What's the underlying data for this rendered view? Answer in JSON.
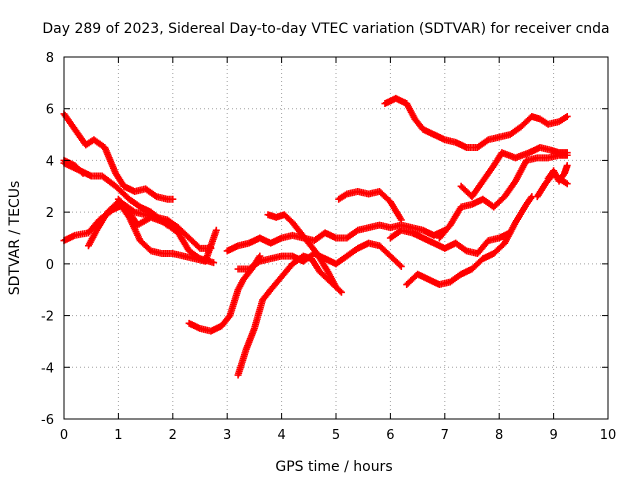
{
  "chart_data": {
    "type": "scatter",
    "title": "Day 289 of 2023, Sidereal Day-to-day VTEC variation (SDTVAR) for receiver cnda",
    "xlabel": "GPS time / hours",
    "ylabel": "SDTVAR / TECUs",
    "xlim": [
      0,
      10
    ],
    "ylim": [
      -6,
      8
    ],
    "xticks": [
      0,
      1,
      2,
      3,
      4,
      5,
      6,
      7,
      8,
      9,
      10
    ],
    "yticks": [
      -6,
      -4,
      -2,
      0,
      2,
      4,
      6,
      8
    ],
    "grid": true,
    "legend": "none",
    "marker": "plus",
    "color": "#ff0000",
    "series": [
      {
        "x": [
          0.0,
          0.2,
          0.4,
          0.55,
          0.75,
          0.95,
          1.1,
          1.3,
          1.5,
          1.7,
          1.9,
          2.0
        ],
        "values": [
          5.8,
          5.2,
          4.6,
          4.8,
          4.5,
          3.5,
          3.0,
          2.8,
          2.9,
          2.6,
          2.5,
          2.5
        ]
      },
      {
        "x": [
          0.0,
          0.2,
          0.35
        ],
        "values": [
          4.0,
          3.8,
          3.5
        ]
      },
      {
        "x": [
          0.0,
          0.3,
          0.5,
          0.7,
          0.95,
          1.2,
          1.4,
          1.6,
          1.9,
          2.0
        ],
        "values": [
          3.9,
          3.6,
          3.4,
          3.4,
          3.0,
          2.5,
          2.2,
          2.0,
          1.5,
          1.5
        ]
      },
      {
        "x": [
          0.0,
          0.2,
          0.45,
          0.65,
          0.9,
          1.1,
          1.3,
          1.5,
          1.7,
          1.9,
          2.1,
          2.3,
          2.5,
          2.7
        ],
        "values": [
          0.9,
          1.1,
          1.2,
          1.7,
          2.1,
          2.3,
          2.0,
          1.9,
          1.8,
          1.7,
          1.4,
          1.0,
          0.6,
          0.6
        ]
      },
      {
        "x": [
          0.45,
          0.6,
          0.8,
          1.0,
          1.2,
          1.4,
          1.6,
          1.8,
          2.0,
          2.2,
          2.4,
          2.6,
          2.8
        ],
        "values": [
          0.7,
          1.3,
          2.0,
          2.4,
          1.8,
          0.9,
          0.5,
          0.4,
          0.4,
          0.3,
          0.2,
          0.1,
          1.3
        ]
      },
      {
        "x": [
          1.0,
          1.2,
          1.35,
          1.6,
          1.85,
          2.1,
          2.3,
          2.5,
          2.75
        ],
        "values": [
          2.5,
          2.0,
          1.5,
          1.8,
          1.6,
          1.2,
          0.5,
          0.2,
          0.05
        ]
      },
      {
        "x": [
          2.3,
          2.5,
          2.7,
          2.9,
          3.05,
          3.2,
          3.3,
          3.45,
          3.6
        ],
        "values": [
          -2.3,
          -2.5,
          -2.6,
          -2.4,
          -2.0,
          -1.0,
          -0.6,
          -0.2,
          0.3
        ]
      },
      {
        "x": [
          3.2,
          3.35,
          3.5,
          3.65,
          3.8,
          4.0,
          4.2,
          4.4,
          4.55,
          4.7,
          4.9,
          5.1
        ],
        "values": [
          -4.3,
          -3.3,
          -2.5,
          -1.4,
          -1.0,
          -0.5,
          0.0,
          0.3,
          0.2,
          -0.3,
          -0.7,
          -1.1
        ]
      },
      {
        "x": [
          3.0,
          3.2,
          3.4,
          3.6,
          3.8,
          4.0,
          4.2,
          4.4,
          4.6,
          4.8,
          5.0,
          5.2,
          5.4,
          5.6,
          5.8,
          6.0,
          6.2,
          6.4,
          6.6,
          6.8,
          7.0
        ],
        "values": [
          0.5,
          0.7,
          0.8,
          1.0,
          0.8,
          1.0,
          1.1,
          1.0,
          0.9,
          1.2,
          1.0,
          1.0,
          1.3,
          1.4,
          1.5,
          1.4,
          1.5,
          1.4,
          1.3,
          1.1,
          1.3
        ]
      },
      {
        "x": [
          3.2,
          3.4,
          3.6,
          3.8,
          4.0,
          4.2,
          4.4,
          4.6,
          4.8,
          5.0,
          5.2,
          5.4,
          5.6,
          5.8,
          6.0,
          6.2
        ],
        "values": [
          -0.2,
          -0.2,
          0.1,
          0.2,
          0.3,
          0.3,
          0.1,
          0.4,
          0.2,
          0.0,
          0.3,
          0.6,
          0.8,
          0.7,
          0.3,
          -0.1
        ]
      },
      {
        "x": [
          3.75,
          3.9,
          4.05,
          4.2,
          4.35,
          4.5,
          4.65,
          4.85,
          5.0
        ],
        "values": [
          1.9,
          1.8,
          1.9,
          1.6,
          1.2,
          0.8,
          0.4,
          -0.3,
          -0.9
        ]
      },
      {
        "x": [
          5.05,
          5.2,
          5.4,
          5.6,
          5.8,
          6.0,
          6.2
        ],
        "values": [
          2.5,
          2.7,
          2.8,
          2.7,
          2.8,
          2.4,
          1.7
        ]
      },
      {
        "x": [
          5.9,
          6.1,
          6.3,
          6.45,
          6.6,
          6.8,
          7.0,
          7.2,
          7.4,
          7.6,
          7.8,
          8.0,
          8.2,
          8.4,
          8.6,
          8.75,
          8.9,
          9.1,
          9.25
        ],
        "values": [
          6.2,
          6.4,
          6.2,
          5.6,
          5.2,
          5.0,
          4.8,
          4.7,
          4.5,
          4.5,
          4.8,
          4.9,
          5.0,
          5.3,
          5.7,
          5.6,
          5.4,
          5.5,
          5.7
        ]
      },
      {
        "x": [
          6.0,
          6.2,
          6.4,
          6.6,
          6.8,
          7.0,
          7.2,
          7.4,
          7.6,
          7.8,
          8.0,
          8.2
        ],
        "values": [
          1.0,
          1.3,
          1.2,
          1.0,
          0.8,
          0.6,
          0.8,
          0.5,
          0.4,
          0.9,
          1.0,
          1.2
        ]
      },
      {
        "x": [
          6.3,
          6.5,
          6.7,
          6.9,
          7.1,
          7.3,
          7.5,
          7.7,
          7.9,
          8.1,
          8.3,
          8.5,
          8.6
        ],
        "values": [
          -0.8,
          -0.4,
          -0.6,
          -0.8,
          -0.7,
          -0.4,
          -0.2,
          0.2,
          0.4,
          0.8,
          1.6,
          2.3,
          2.6
        ]
      },
      {
        "x": [
          6.9,
          7.1,
          7.3,
          7.5,
          7.7,
          7.9,
          8.1,
          8.3,
          8.5,
          8.7,
          8.9,
          9.1,
          9.25
        ],
        "values": [
          1.0,
          1.5,
          2.2,
          2.3,
          2.5,
          2.2,
          2.6,
          3.2,
          4.0,
          4.1,
          4.1,
          4.2,
          4.2
        ]
      },
      {
        "x": [
          7.3,
          7.5,
          7.7,
          7.9,
          8.05,
          8.3,
          8.55,
          8.75,
          8.95,
          9.1,
          9.25
        ],
        "values": [
          3.0,
          2.6,
          3.2,
          3.8,
          4.3,
          4.1,
          4.3,
          4.5,
          4.4,
          4.3,
          4.3
        ]
      },
      {
        "x": [
          8.7,
          8.85,
          9.0,
          9.1,
          9.25
        ],
        "values": [
          2.6,
          3.1,
          3.5,
          3.3,
          3.1
        ]
      },
      {
        "x": [
          8.9,
          9.0,
          9.1,
          9.2,
          9.25
        ],
        "values": [
          3.3,
          3.6,
          3.2,
          3.5,
          3.8
        ]
      }
    ]
  }
}
